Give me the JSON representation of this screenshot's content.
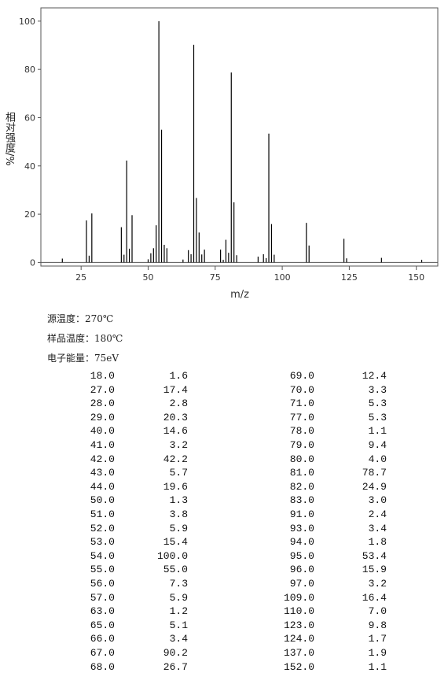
{
  "chart_data": {
    "type": "stem",
    "x_label": "m/z",
    "y_label": "相对强度/%",
    "x": [
      18,
      27,
      28,
      29,
      40,
      41,
      42,
      43,
      44,
      50,
      51,
      52,
      53,
      54,
      55,
      56,
      57,
      63,
      65,
      66,
      67,
      68,
      69,
      70,
      71,
      77,
      78,
      79,
      80,
      81,
      82,
      83,
      91,
      93,
      94,
      95,
      96,
      97,
      109,
      110,
      123,
      124,
      137,
      152
    ],
    "values": [
      1.6,
      17.4,
      2.8,
      20.3,
      14.6,
      3.2,
      42.2,
      5.7,
      19.6,
      1.3,
      3.8,
      5.9,
      15.4,
      100.0,
      55.0,
      7.3,
      5.9,
      1.2,
      5.1,
      3.4,
      90.2,
      26.7,
      12.4,
      3.3,
      5.3,
      5.3,
      1.1,
      9.4,
      4.0,
      78.7,
      24.9,
      3.0,
      2.4,
      3.4,
      1.8,
      53.4,
      15.9,
      3.2,
      16.4,
      7.0,
      9.8,
      1.7,
      1.9,
      1.1
    ],
    "color": "#000000",
    "xlim": [
      10,
      158
    ],
    "ylim": [
      -1.5,
      105.5
    ],
    "xticks": [
      25,
      50,
      75,
      100,
      125,
      150
    ],
    "yticks": [
      0,
      20,
      40,
      60,
      80,
      100
    ]
  },
  "conditions": [
    "源温度：270℃",
    "样品温度：180℃",
    "电子能量：75eV"
  ],
  "table": {
    "rows": [
      [
        "18.0",
        "1.6",
        "69.0",
        "12.4"
      ],
      [
        "27.0",
        "17.4",
        "70.0",
        "3.3"
      ],
      [
        "28.0",
        "2.8",
        "71.0",
        "5.3"
      ],
      [
        "29.0",
        "20.3",
        "77.0",
        "5.3"
      ],
      [
        "40.0",
        "14.6",
        "78.0",
        "1.1"
      ],
      [
        "41.0",
        "3.2",
        "79.0",
        "9.4"
      ],
      [
        "42.0",
        "42.2",
        "80.0",
        "4.0"
      ],
      [
        "43.0",
        "5.7",
        "81.0",
        "78.7"
      ],
      [
        "44.0",
        "19.6",
        "82.0",
        "24.9"
      ],
      [
        "50.0",
        "1.3",
        "83.0",
        "3.0"
      ],
      [
        "51.0",
        "3.8",
        "91.0",
        "2.4"
      ],
      [
        "52.0",
        "5.9",
        "93.0",
        "3.4"
      ],
      [
        "53.0",
        "15.4",
        "94.0",
        "1.8"
      ],
      [
        "54.0",
        "100.0",
        "95.0",
        "53.4"
      ],
      [
        "55.0",
        "55.0",
        "96.0",
        "15.9"
      ],
      [
        "56.0",
        "7.3",
        "97.0",
        "3.2"
      ],
      [
        "57.0",
        "5.9",
        "109.0",
        "16.4"
      ],
      [
        "63.0",
        "1.2",
        "110.0",
        "7.0"
      ],
      [
        "65.0",
        "5.1",
        "123.0",
        "9.8"
      ],
      [
        "66.0",
        "3.4",
        "124.0",
        "1.7"
      ],
      [
        "67.0",
        "90.2",
        "137.0",
        "1.9"
      ],
      [
        "68.0",
        "26.7",
        "152.0",
        "1.1"
      ]
    ]
  }
}
